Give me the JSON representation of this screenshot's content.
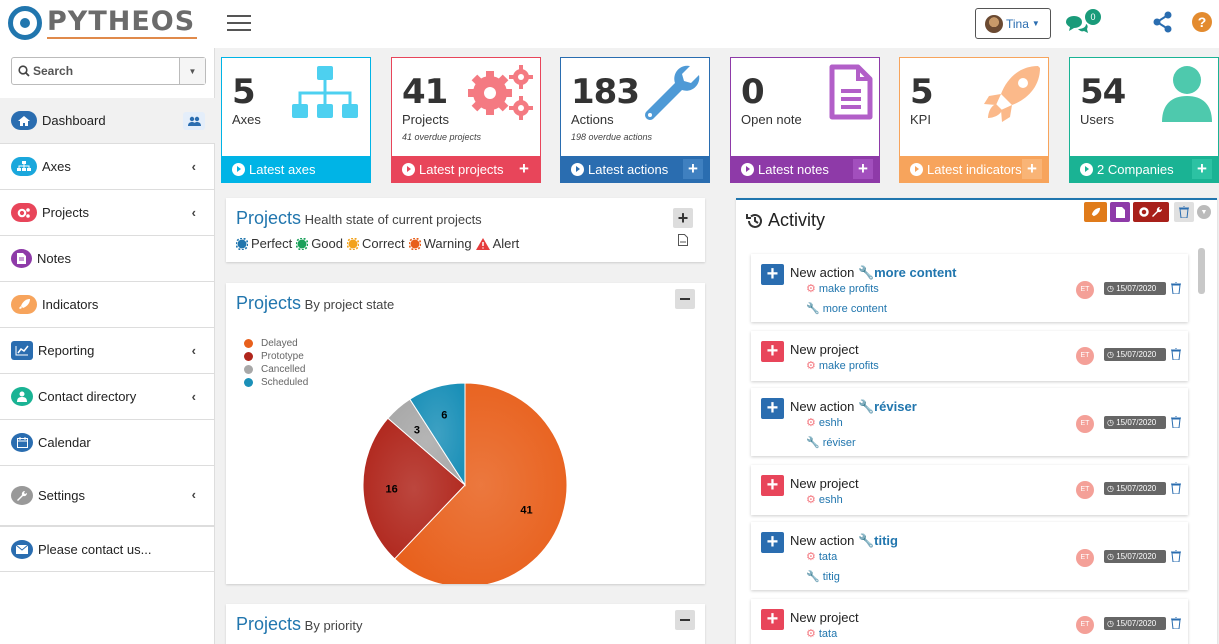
{
  "brand": {
    "name": "PYTHEOS"
  },
  "header": {
    "user_name": "Tina",
    "notif_count": "0"
  },
  "search": {
    "placeholder": "Search"
  },
  "sidebar": {
    "items": [
      {
        "label": "Dashboard"
      },
      {
        "label": "Axes"
      },
      {
        "label": "Projects"
      },
      {
        "label": "Notes"
      },
      {
        "label": "Indicators"
      },
      {
        "label": "Reporting"
      },
      {
        "label": "Contact directory"
      },
      {
        "label": "Calendar"
      },
      {
        "label": "Settings"
      },
      {
        "label": "Please contact us..."
      }
    ]
  },
  "cards": [
    {
      "value": "5",
      "label": "Axes",
      "sub": "",
      "footer": "Latest axes",
      "color": "#00b4e6"
    },
    {
      "value": "41",
      "label": "Projects",
      "sub": "41 overdue projects",
      "footer": "Latest projects",
      "color": "#e8455a"
    },
    {
      "value": "183",
      "label": "Actions",
      "sub": "198 overdue actions",
      "footer": "Latest actions",
      "color": "#2a6db0"
    },
    {
      "value": "0",
      "label": "Open note",
      "sub": "",
      "footer": "Latest notes",
      "color": "#8e3aa8"
    },
    {
      "value": "5",
      "label": "KPI",
      "sub": "",
      "footer": "Latest indicators",
      "color": "#f7a45c"
    },
    {
      "value": "54",
      "label": "Users",
      "sub": "",
      "footer": "2 Companies",
      "color": "#1ab394"
    }
  ],
  "health": {
    "title": "Projects",
    "subtitle": "Health state of current projects",
    "legend": [
      "Perfect",
      "Good",
      "Correct",
      "Warning",
      "Alert"
    ]
  },
  "state_panel": {
    "title": "Projects",
    "subtitle": "By project state"
  },
  "priority_panel": {
    "title": "Projects",
    "subtitle": "By priority"
  },
  "chart_data": {
    "type": "pie",
    "title": "Projects By project state",
    "categories": [
      "Delayed",
      "Prototype",
      "Cancelled",
      "Scheduled"
    ],
    "values": [
      41,
      16,
      3,
      6
    ],
    "colors": [
      "#e8601c",
      "#b0261c",
      "#a8a8a8",
      "#1b90b8"
    ],
    "legend_position": "top-left"
  },
  "activity": {
    "title": "Activity",
    "items": [
      {
        "kind": "action",
        "prefix": "New action",
        "link": "more content",
        "subs": [
          {
            "type": "project",
            "text": "make profits"
          },
          {
            "type": "action",
            "text": "more content"
          }
        ],
        "initials": "ET",
        "date": "15/07/2020"
      },
      {
        "kind": "project",
        "prefix": "New project",
        "link": "",
        "subs": [
          {
            "type": "project",
            "text": "make profits"
          }
        ],
        "initials": "ET",
        "date": "15/07/2020"
      },
      {
        "kind": "action",
        "prefix": "New action",
        "link": "réviser",
        "subs": [
          {
            "type": "project",
            "text": "eshh"
          },
          {
            "type": "action",
            "text": "réviser"
          }
        ],
        "initials": "ET",
        "date": "15/07/2020"
      },
      {
        "kind": "project",
        "prefix": "New project",
        "link": "",
        "subs": [
          {
            "type": "project",
            "text": "eshh"
          }
        ],
        "initials": "ET",
        "date": "15/07/2020"
      },
      {
        "kind": "action",
        "prefix": "New action",
        "link": "titig",
        "subs": [
          {
            "type": "project",
            "text": "tata"
          },
          {
            "type": "action",
            "text": "titig"
          }
        ],
        "initials": "ET",
        "date": "15/07/2020"
      },
      {
        "kind": "project",
        "prefix": "New project",
        "link": "",
        "subs": [
          {
            "type": "project",
            "text": "tata"
          }
        ],
        "initials": "ET",
        "date": "15/07/2020"
      }
    ]
  }
}
